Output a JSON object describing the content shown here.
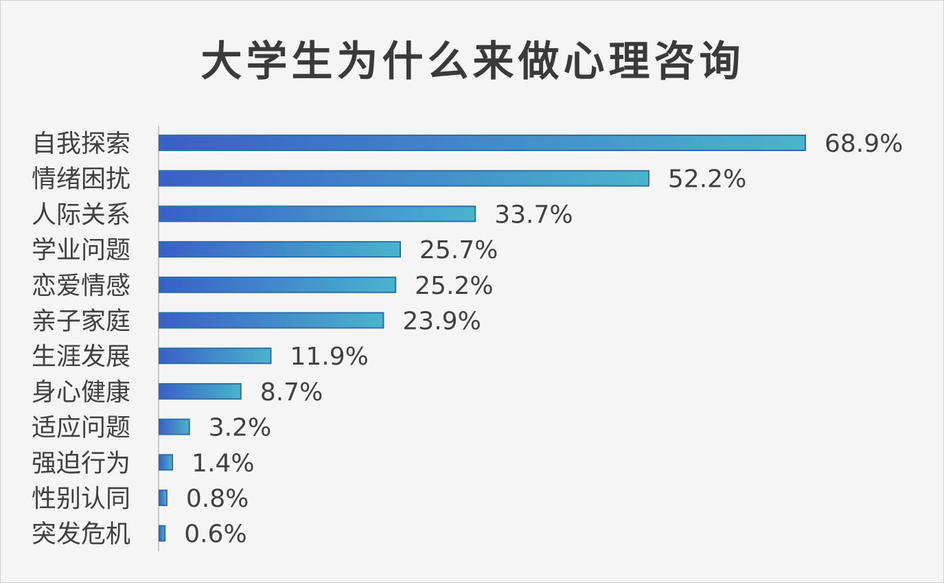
{
  "chart_data": {
    "type": "bar",
    "orientation": "horizontal",
    "title": "大学生为什么来做心理咨询",
    "categories": [
      "自我探索",
      "情绪困扰",
      "人际关系",
      "学业问题",
      "恋爱情感",
      "亲子家庭",
      "生涯发展",
      "身心健康",
      "适应问题",
      "强迫行为",
      "性别认同",
      "突发危机"
    ],
    "values": [
      68.9,
      52.2,
      33.7,
      25.7,
      25.2,
      23.9,
      11.9,
      8.7,
      3.2,
      1.4,
      0.8,
      0.6
    ],
    "value_labels": [
      "68.9%",
      "52.2%",
      "33.7%",
      "25.7%",
      "25.2%",
      "23.9%",
      "11.9%",
      "8.7%",
      "3.2%",
      "1.4%",
      "0.8%",
      "0.6%"
    ],
    "value_suffix": "%",
    "xlabel": "",
    "ylabel": "",
    "xlim": [
      0,
      68.9
    ],
    "grid": false,
    "legend": "none",
    "colors": {
      "bar_start": "#3a5fc8",
      "bar_end": "#4ab4cc",
      "bar_border": "#2d6ea6",
      "axis": "#c8c8c8",
      "text": "#404040"
    }
  }
}
